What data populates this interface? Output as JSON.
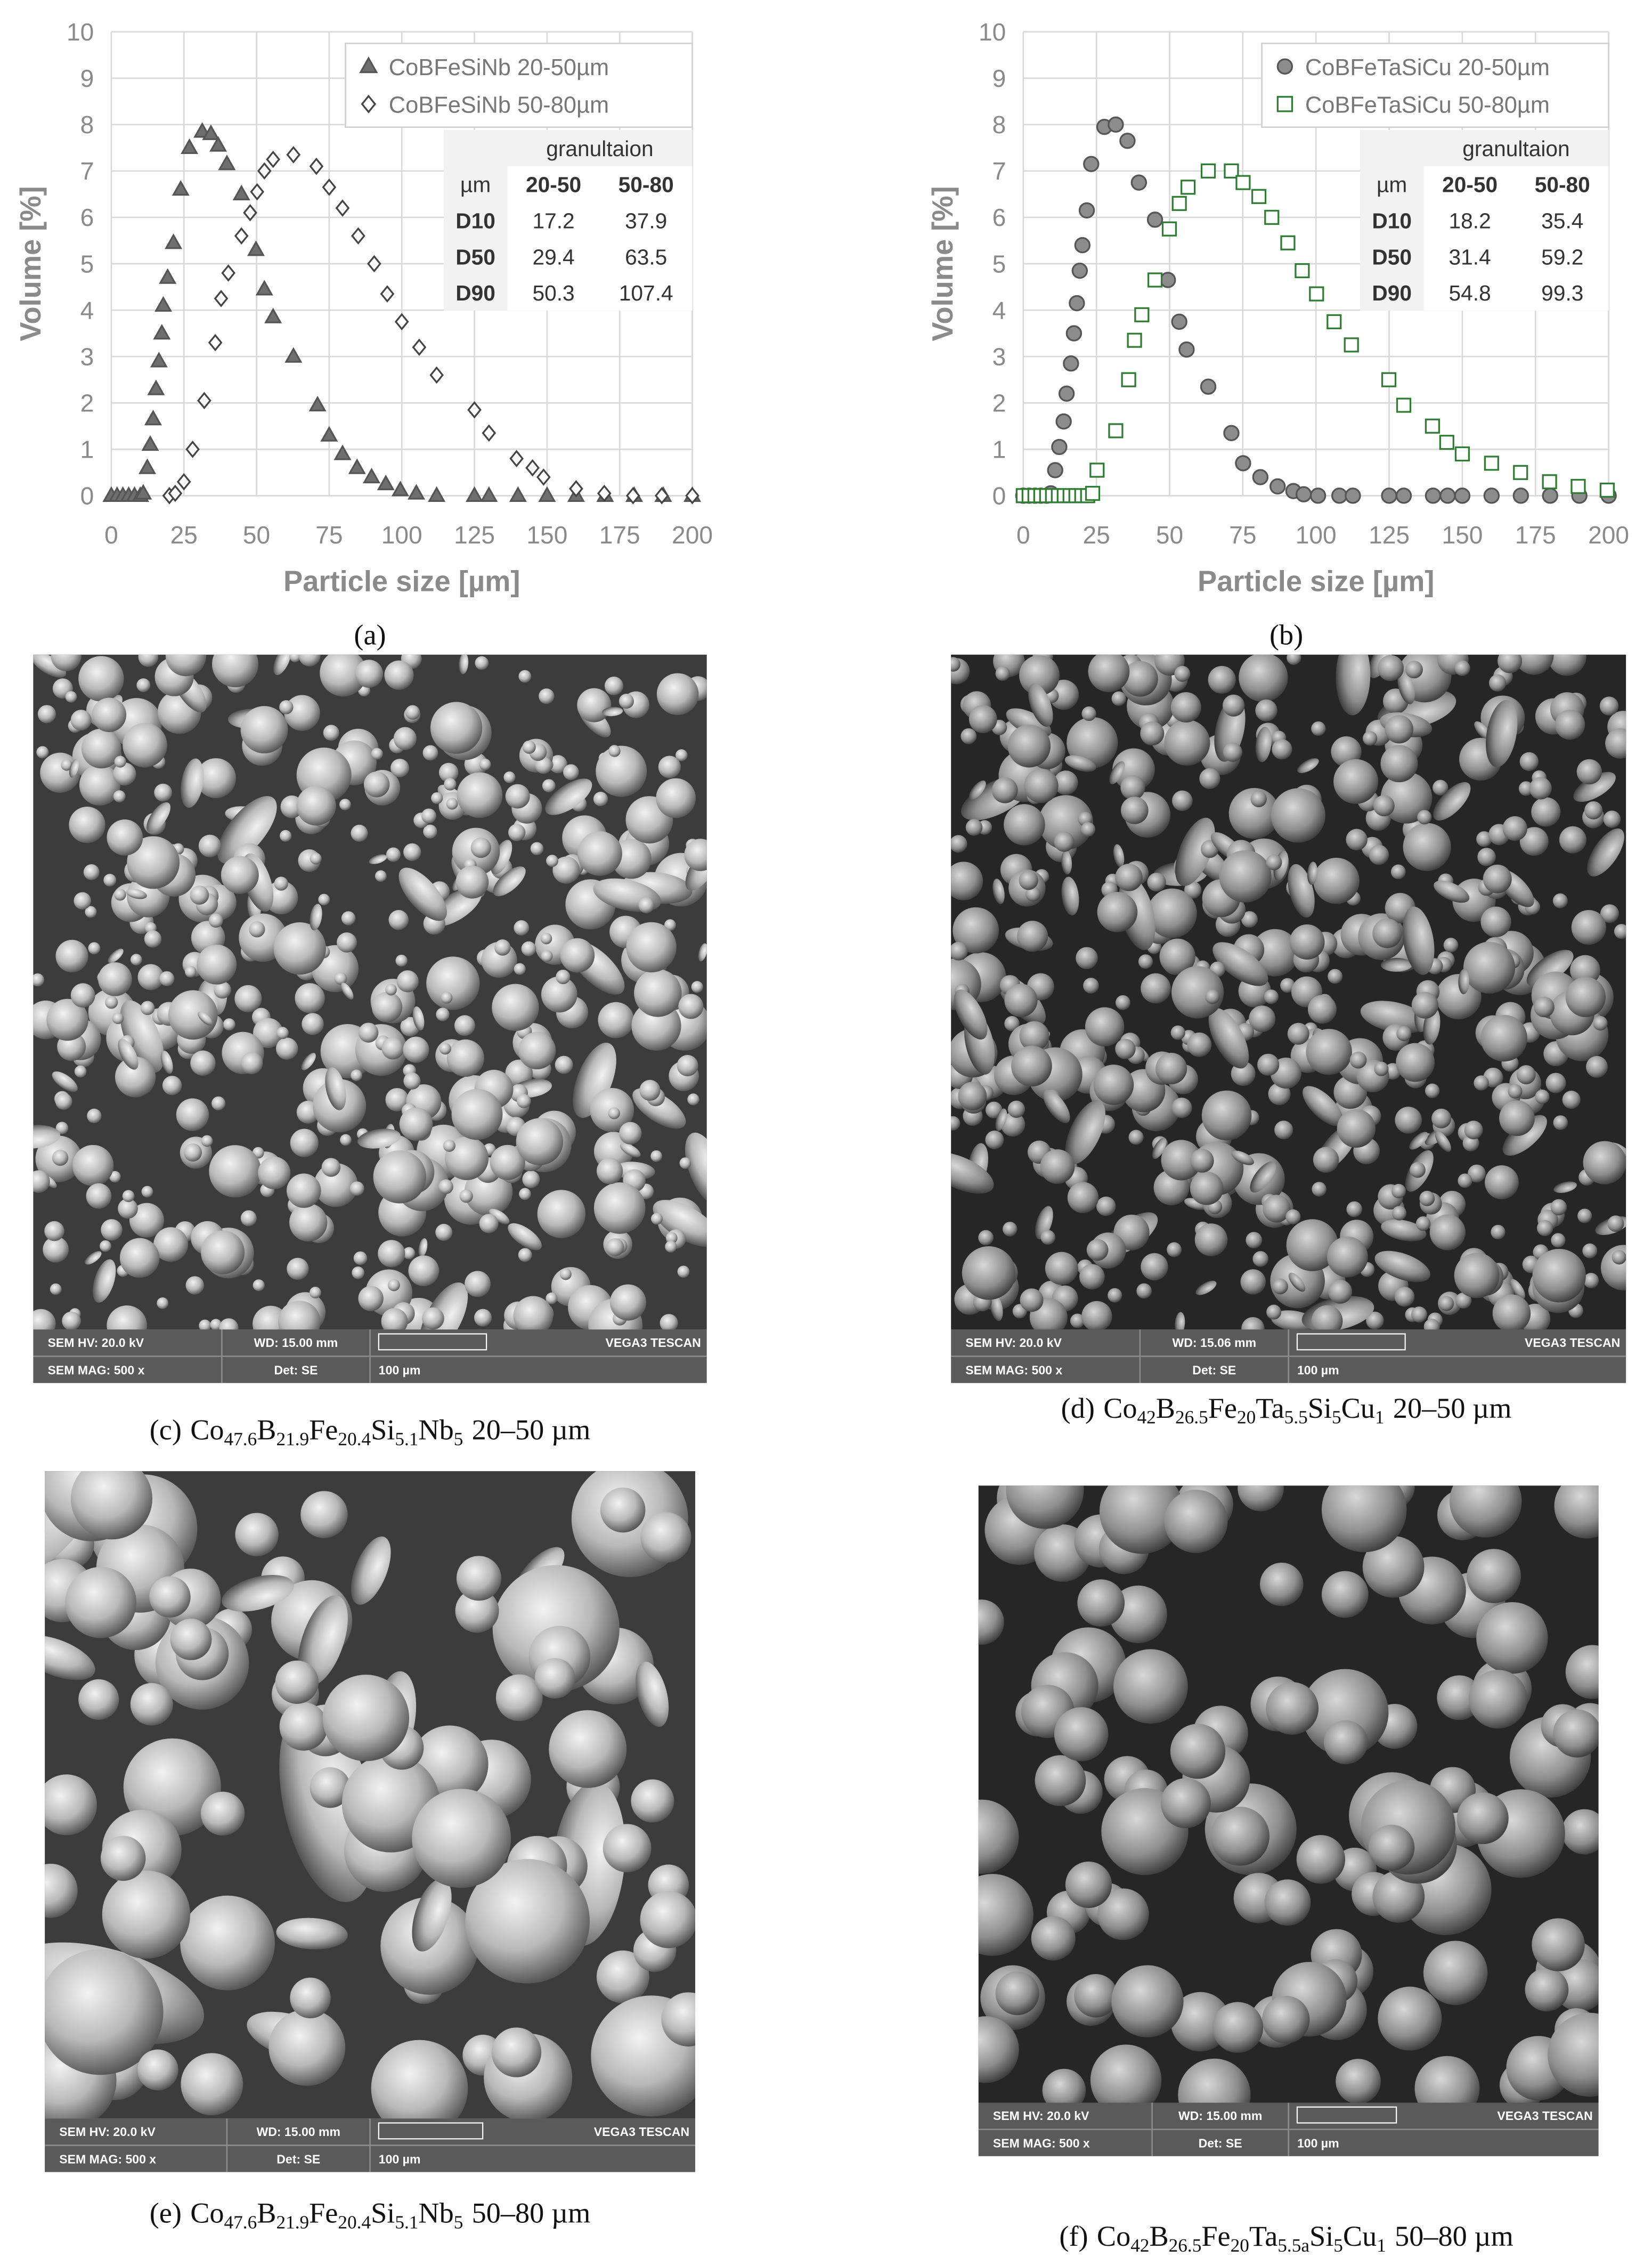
{
  "chart_data": [
    {
      "type": "scatter",
      "panel_label": "(a)",
      "x_label": "Particle size [µm]",
      "y_label": "Volume [%]",
      "xlim": [
        0,
        200
      ],
      "ylim": [
        0,
        10
      ],
      "xticks": [
        0,
        25,
        50,
        75,
        100,
        125,
        150,
        175,
        200
      ],
      "yticks": [
        0,
        1,
        2,
        3,
        4,
        5,
        6,
        7,
        8,
        9,
        10
      ],
      "grid": true,
      "legend": "upper right",
      "series": [
        {
          "name": "CoBFeSiNb 20-50µm",
          "marker": "triangle",
          "color": "#555555",
          "fill": "#6e6e6e",
          "x": [
            0,
            2,
            4,
            6,
            8,
            10,
            11,
            12.4,
            13.4,
            14.4,
            15.4,
            16.4,
            17.4,
            17.9,
            19.4,
            21.4,
            23.9,
            26.9,
            31.3,
            34.3,
            36.8,
            39.8,
            44.8,
            49.8,
            52.7,
            55.7,
            62.7,
            71,
            75,
            79.6,
            84.6,
            89.6,
            94.5,
            99.5,
            105,
            112,
            125,
            130,
            140,
            150,
            160,
            170,
            180,
            190,
            200
          ],
          "values": [
            0,
            0,
            0,
            0,
            0,
            0,
            0.05,
            0.6,
            1.1,
            1.65,
            2.3,
            2.9,
            3.5,
            4.1,
            4.7,
            5.45,
            6.6,
            7.5,
            7.85,
            7.8,
            7.55,
            7.15,
            6.5,
            5.3,
            4.45,
            3.85,
            3.0,
            1.95,
            1.3,
            0.9,
            0.6,
            0.4,
            0.25,
            0.12,
            0.05,
            0,
            0,
            0,
            0,
            0,
            0,
            0,
            0,
            0,
            0
          ]
        },
        {
          "name": "CoBFeSiNb 50-80µm",
          "marker": "diamond",
          "color": "#444444",
          "fill": "#ffffff",
          "x": [
            20,
            22,
            25,
            28,
            32,
            35.8,
            37.8,
            40.3,
            44.8,
            47.8,
            50.2,
            52.7,
            55.7,
            62.7,
            70.6,
            75,
            79.6,
            85,
            90.5,
            95,
            100,
            106,
            112,
            125,
            130,
            139.5,
            145,
            148.8,
            160,
            169.7,
            179.6,
            189.5,
            200
          ],
          "values": [
            0,
            0.05,
            0.3,
            1.0,
            2.05,
            3.3,
            4.25,
            4.8,
            5.6,
            6.1,
            6.55,
            7.0,
            7.25,
            7.35,
            7.1,
            6.65,
            6.2,
            5.6,
            5.0,
            4.35,
            3.75,
            3.2,
            2.6,
            1.85,
            1.35,
            0.8,
            0.6,
            0.4,
            0.15,
            0.05,
            0,
            0,
            0
          ]
        }
      ],
      "table": {
        "title": "granultaion",
        "columns": [
          "µm",
          "20-50",
          "50-80"
        ],
        "rows": [
          [
            "D10",
            17.2,
            37.9
          ],
          [
            "D50",
            29.4,
            63.5
          ],
          [
            "D90",
            50.3,
            107.4
          ]
        ]
      }
    },
    {
      "type": "scatter",
      "panel_label": "(b)",
      "x_label": "Particle size [µm]",
      "y_label": "Volume [%]",
      "xlim": [
        0,
        200
      ],
      "ylim": [
        0,
        10
      ],
      "xticks": [
        0,
        25,
        50,
        75,
        100,
        125,
        150,
        175,
        200
      ],
      "yticks": [
        0,
        1,
        2,
        3,
        4,
        5,
        6,
        7,
        8,
        9,
        10
      ],
      "grid": true,
      "legend": "upper right",
      "series": [
        {
          "name": "CoBFeTaSiCu 20-50µm",
          "marker": "circle",
          "color": "#555555",
          "fill": "#8c8c8c",
          "x": [
            0,
            2,
            4,
            6,
            8,
            9.4,
            10.9,
            12.3,
            13.8,
            14.8,
            16.3,
            17.3,
            18.3,
            19.3,
            20.2,
            21.7,
            23.2,
            27.7,
            31.6,
            35.6,
            39.5,
            45,
            49.4,
            53.3,
            55.8,
            63.2,
            71.1,
            75.1,
            81,
            86.9,
            92.3,
            95.8,
            100.7,
            108,
            112.6,
            125,
            130,
            140,
            145,
            150,
            160,
            170,
            180,
            190,
            200
          ],
          "values": [
            0,
            0,
            0,
            0,
            0,
            0.05,
            0.55,
            1.05,
            1.6,
            2.2,
            2.85,
            3.5,
            4.15,
            4.85,
            5.4,
            6.15,
            7.15,
            7.95,
            8.0,
            7.65,
            6.75,
            5.95,
            4.65,
            3.75,
            3.15,
            2.35,
            1.35,
            0.7,
            0.4,
            0.2,
            0.1,
            0.03,
            0,
            0,
            0,
            0,
            0,
            0,
            0,
            0,
            0,
            0,
            0,
            0,
            0
          ]
        },
        {
          "name": "CoBFeTaSiCu 50-80µm",
          "marker": "square",
          "color": "#2e7d32",
          "fill": "#ffffff",
          "x": [
            0,
            2,
            4,
            6,
            8,
            10,
            12,
            14,
            16,
            18,
            20,
            22,
            23.7,
            25.2,
            31.6,
            36,
            38,
            40.5,
            45,
            49.9,
            53.3,
            56.3,
            63.2,
            71.1,
            75.1,
            80.5,
            84.9,
            90.4,
            95.3,
            100.2,
            106.2,
            112.1,
            124.9,
            130,
            139.8,
            144.7,
            150,
            160,
            169.9,
            179.8,
            189.6,
            199.5
          ],
          "values": [
            0,
            0,
            0,
            0,
            0,
            0,
            0,
            0,
            0,
            0,
            0,
            0,
            0.05,
            0.55,
            1.4,
            2.5,
            3.35,
            3.9,
            4.65,
            5.75,
            6.3,
            6.65,
            7.0,
            7.0,
            6.75,
            6.45,
            6.0,
            5.45,
            4.85,
            4.35,
            3.75,
            3.25,
            2.5,
            1.95,
            1.5,
            1.15,
            0.9,
            0.7,
            0.5,
            0.3,
            0.2,
            0.12
          ]
        }
      ],
      "table": {
        "title": "granultaion",
        "columns": [
          "µm",
          "20-50",
          "50-80"
        ],
        "rows": [
          [
            "D10",
            18.2,
            35.4
          ],
          [
            "D50",
            31.4,
            59.2
          ],
          [
            "D90",
            54.8,
            99.3
          ]
        ]
      }
    }
  ],
  "figures": [
    {
      "label": "(c)",
      "formula": [
        "Co",
        "47.6",
        "B",
        "21.9",
        "Fe",
        "20.4",
        "Si",
        "5.1",
        "Nb",
        "5"
      ],
      "range": "20–50 µm",
      "info": {
        "hv": "SEM HV: 20.0 kV",
        "wd": "WD: 15.00 mm",
        "brand": "VEGA3 TESCAN",
        "mag": "SEM MAG: 500 x",
        "det": "Det: SE",
        "scale": "100 µm"
      }
    },
    {
      "label": "(d)",
      "formula": [
        "Co",
        "42",
        "B",
        "26.5",
        "Fe",
        "20",
        "Ta",
        "5.5",
        "Si",
        "5",
        "Cu",
        "1"
      ],
      "range": "20–50 µm",
      "info": {
        "hv": "SEM HV: 20.0 kV",
        "wd": "WD: 15.06 mm",
        "brand": "VEGA3 TESCAN",
        "mag": "SEM MAG: 500 x",
        "det": "Det: SE",
        "scale": "100 µm"
      }
    },
    {
      "label": "(e)",
      "formula": [
        "Co",
        "47.6",
        "B",
        "21.9",
        "Fe",
        "20.4",
        "Si",
        "5.1",
        "Nb",
        "5"
      ],
      "range": "50–80 µm",
      "info": {
        "hv": "SEM HV: 20.0 kV",
        "wd": "WD: 15.00 mm",
        "brand": "VEGA3 TESCAN",
        "mag": "SEM MAG: 500 x",
        "det": "Det: SE",
        "scale": "100 µm"
      }
    },
    {
      "label": "(f)",
      "formula": [
        "Co",
        "42",
        "B",
        "26.5",
        "Fe",
        "20",
        "Ta",
        "5.5a",
        "Si",
        "5",
        "Cu",
        "1"
      ],
      "range": "50–80 µm",
      "info": {
        "hv": "SEM HV: 20.0 kV",
        "wd": "WD: 15.00 mm",
        "brand": "VEGA3 TESCAN",
        "mag": "SEM MAG: 500 x",
        "det": "Det: SE",
        "scale": "100 µm"
      }
    }
  ]
}
